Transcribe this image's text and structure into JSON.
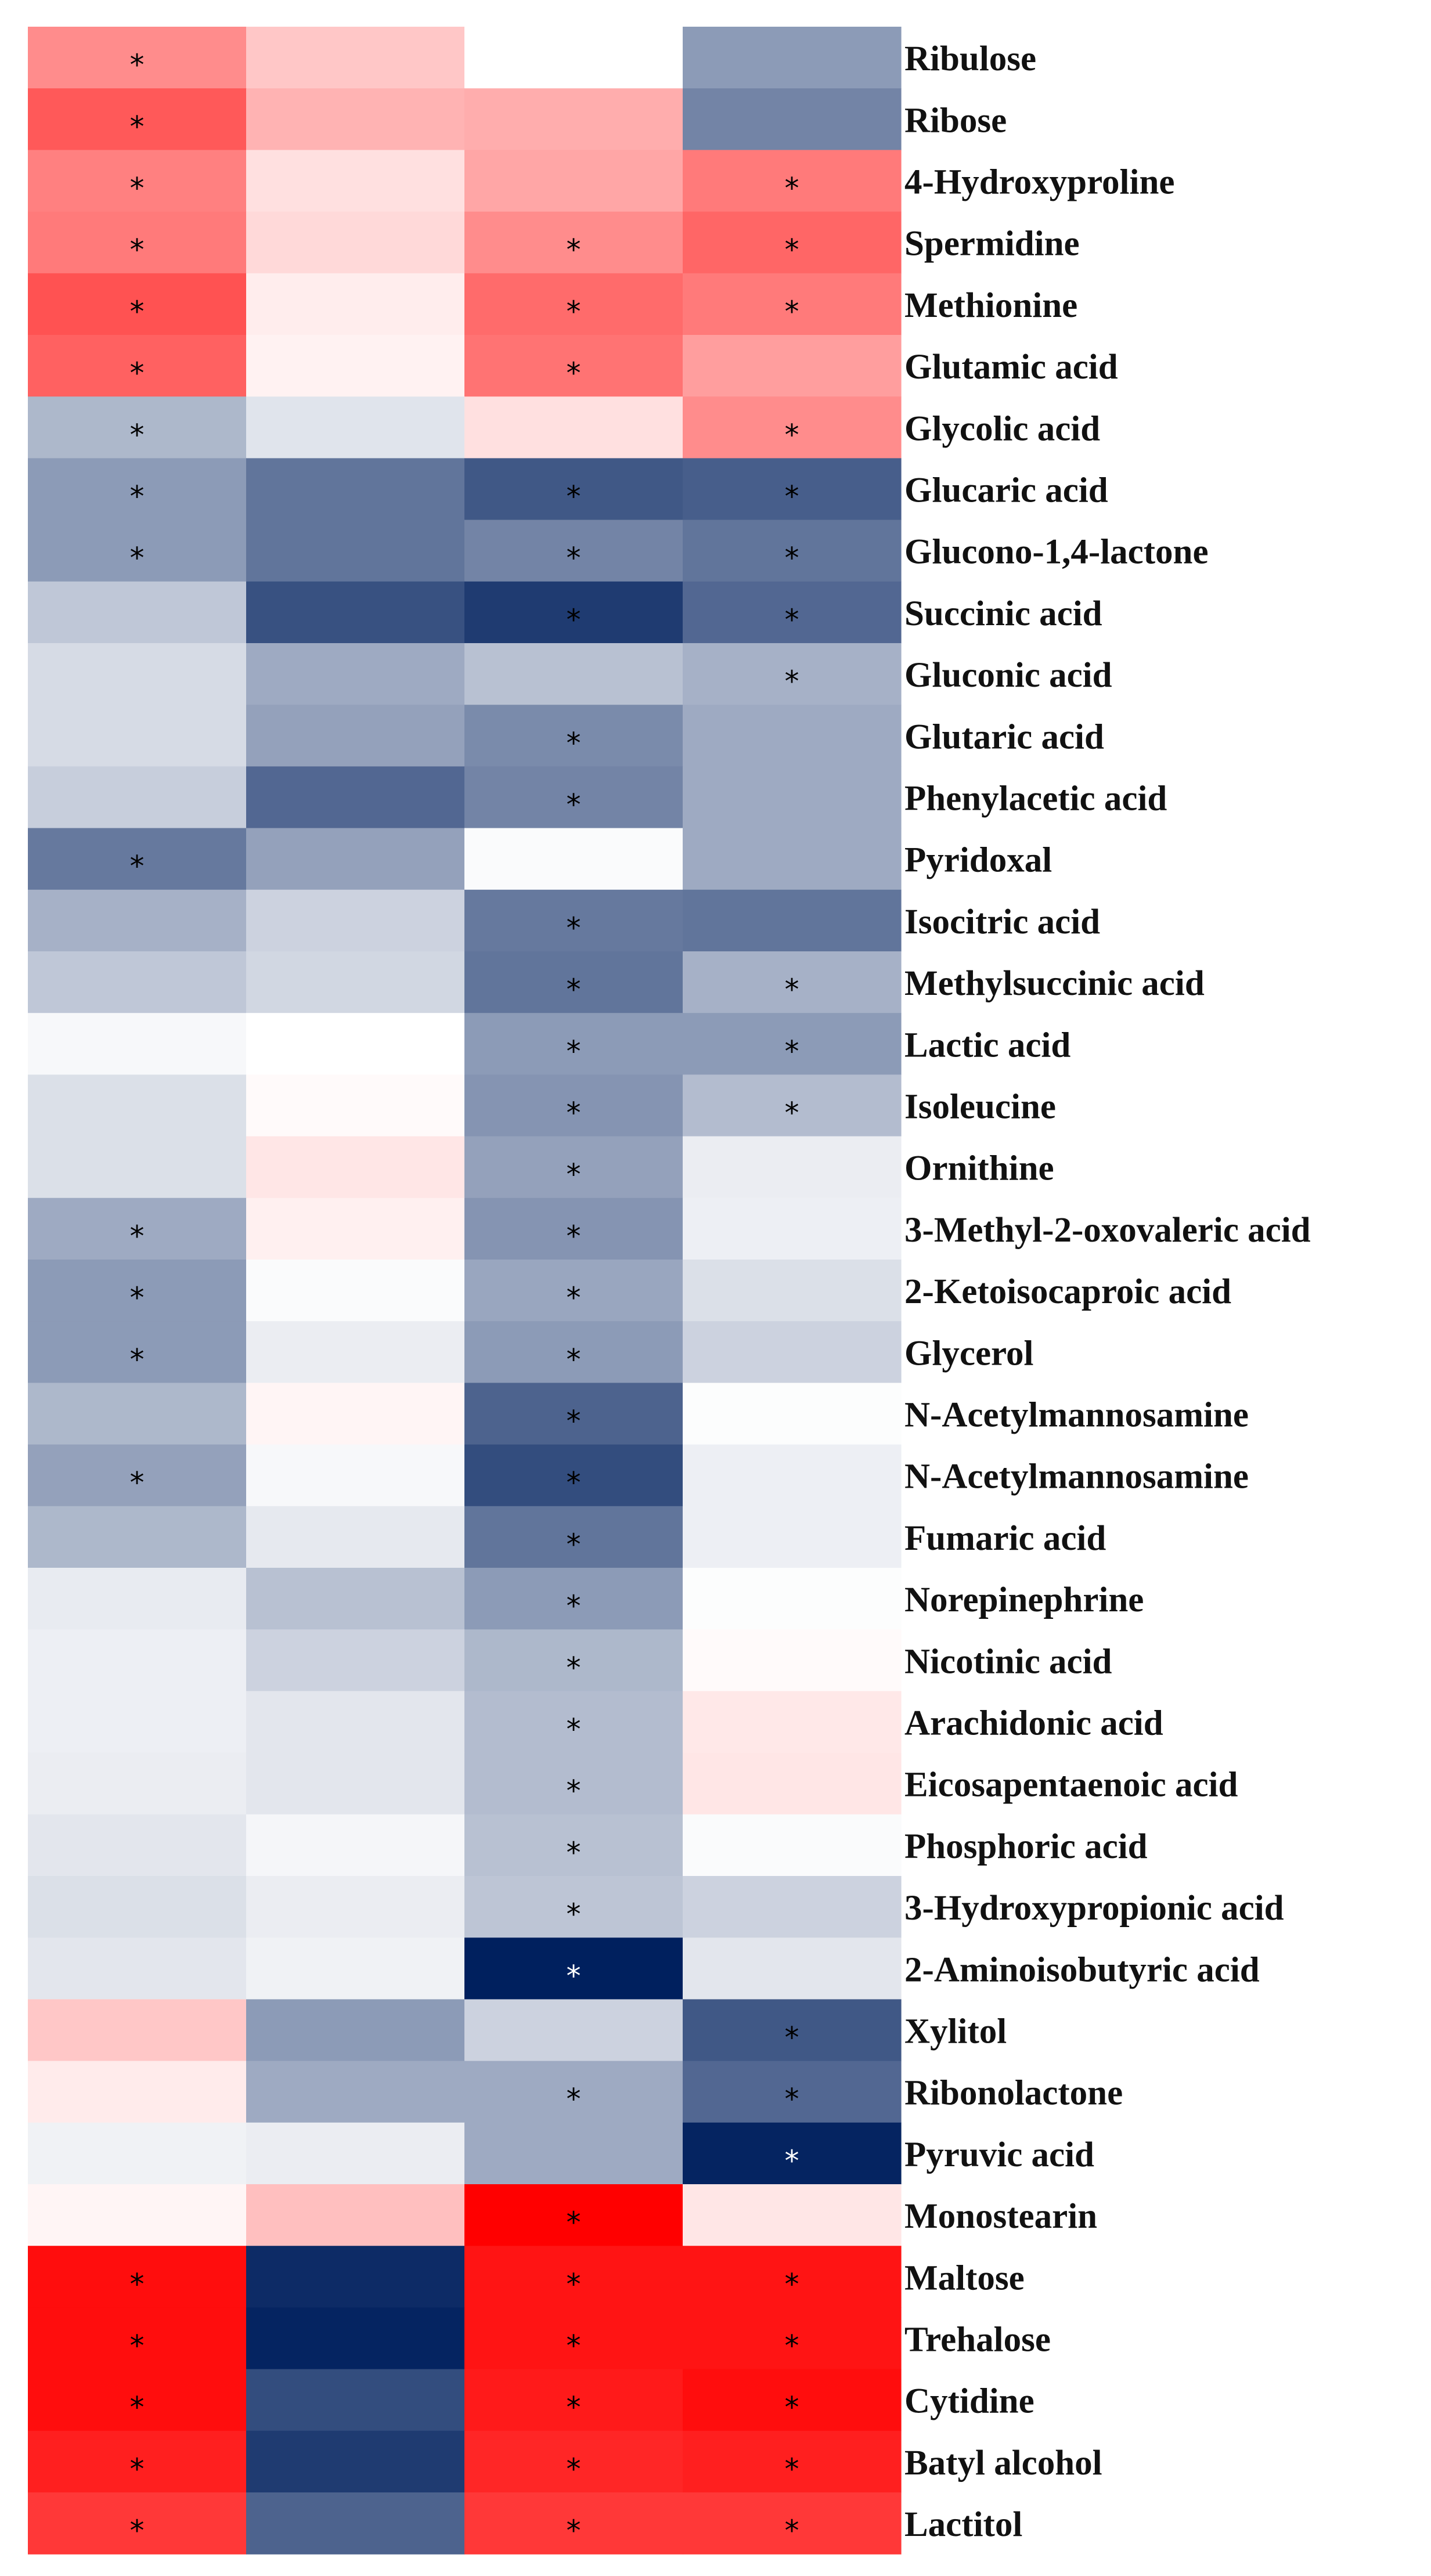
{
  "chart_data": {
    "type": "heatmap",
    "title": "",
    "xlabel": "",
    "ylabel": "",
    "columns": [
      "",
      "",
      "",
      ""
    ],
    "colorscale": {
      "low": "#00205e",
      "mid": "#ffffff",
      "high": "#ff0000",
      "range": [
        -1,
        1
      ]
    },
    "rows": [
      {
        "label": "Ribulose",
        "values": [
          0.45,
          0.22,
          0.0,
          -0.45
        ],
        "stars": [
          true,
          false,
          false,
          false
        ]
      },
      {
        "label": "Ribose",
        "values": [
          0.65,
          0.3,
          0.32,
          -0.55
        ],
        "stars": [
          true,
          false,
          false,
          false
        ]
      },
      {
        "label": "4-Hydroxyproline",
        "values": [
          0.5,
          0.12,
          0.35,
          0.52
        ],
        "stars": [
          true,
          false,
          false,
          true
        ]
      },
      {
        "label": "Spermidine",
        "values": [
          0.52,
          0.15,
          0.45,
          0.6
        ],
        "stars": [
          true,
          false,
          true,
          true
        ]
      },
      {
        "label": "Methionine",
        "values": [
          0.68,
          0.07,
          0.58,
          0.52
        ],
        "stars": [
          true,
          false,
          true,
          true
        ]
      },
      {
        "label": "Glutamic acid",
        "values": [
          0.62,
          0.05,
          0.55,
          0.38
        ],
        "stars": [
          true,
          false,
          true,
          false
        ]
      },
      {
        "label": "Glycolic acid",
        "values": [
          -0.32,
          -0.12,
          0.12,
          0.45
        ],
        "stars": [
          true,
          false,
          false,
          true
        ]
      },
      {
        "label": "Glucaric acid",
        "values": [
          -0.45,
          -0.62,
          -0.75,
          -0.72
        ],
        "stars": [
          true,
          false,
          true,
          true
        ]
      },
      {
        "label": "Glucono-1,4-lactone",
        "values": [
          -0.45,
          -0.62,
          -0.55,
          -0.62
        ],
        "stars": [
          true,
          false,
          true,
          true
        ]
      },
      {
        "label": "Succinic acid",
        "values": [
          -0.25,
          -0.78,
          -0.88,
          -0.68
        ],
        "stars": [
          false,
          false,
          true,
          true
        ]
      },
      {
        "label": "Gluconic acid",
        "values": [
          -0.16,
          -0.38,
          -0.28,
          -0.35
        ],
        "stars": [
          false,
          false,
          false,
          true
        ]
      },
      {
        "label": "Glutaric acid",
        "values": [
          -0.16,
          -0.42,
          -0.52,
          -0.38
        ],
        "stars": [
          false,
          false,
          true,
          false
        ]
      },
      {
        "label": "Phenylacetic acid",
        "values": [
          -0.22,
          -0.68,
          -0.55,
          -0.38
        ],
        "stars": [
          false,
          false,
          true,
          false
        ]
      },
      {
        "label": "Pyridoxal",
        "values": [
          -0.6,
          -0.42,
          -0.02,
          -0.38
        ],
        "stars": [
          true,
          false,
          false,
          false
        ]
      },
      {
        "label": "Isocitric acid",
        "values": [
          -0.35,
          -0.2,
          -0.6,
          -0.62
        ],
        "stars": [
          false,
          false,
          true,
          false
        ]
      },
      {
        "label": "Methylsuccinic acid",
        "values": [
          -0.25,
          -0.18,
          -0.62,
          -0.35
        ],
        "stars": [
          false,
          false,
          true,
          true
        ]
      },
      {
        "label": "Lactic acid",
        "values": [
          -0.03,
          0.0,
          -0.45,
          -0.45
        ],
        "stars": [
          false,
          false,
          true,
          true
        ]
      },
      {
        "label": "Isoleucine",
        "values": [
          -0.14,
          0.02,
          -0.48,
          -0.3
        ],
        "stars": [
          false,
          false,
          true,
          true
        ]
      },
      {
        "label": "Ornithine",
        "values": [
          -0.14,
          0.1,
          -0.42,
          -0.08
        ],
        "stars": [
          false,
          false,
          true,
          false
        ]
      },
      {
        "label": "3-Methyl-2-oxovaleric acid",
        "values": [
          -0.38,
          0.06,
          -0.48,
          -0.07
        ],
        "stars": [
          true,
          false,
          true,
          false
        ]
      },
      {
        "label": "2-Ketoisocaproic acid",
        "values": [
          -0.45,
          -0.02,
          -0.4,
          -0.14
        ],
        "stars": [
          true,
          false,
          true,
          false
        ]
      },
      {
        "label": "Glycerol",
        "values": [
          -0.45,
          -0.08,
          -0.45,
          -0.2
        ],
        "stars": [
          true,
          false,
          true,
          false
        ]
      },
      {
        "label": "N-Acetylmannosamine",
        "values": [
          -0.32,
          0.04,
          -0.7,
          -0.01
        ],
        "stars": [
          false,
          false,
          true,
          false
        ]
      },
      {
        "label": "N-Acetylmannosamine",
        "values": [
          -0.42,
          -0.03,
          -0.8,
          -0.07
        ],
        "stars": [
          true,
          false,
          true,
          false
        ]
      },
      {
        "label": "Fumaric acid",
        "values": [
          -0.32,
          -0.1,
          -0.62,
          -0.07
        ],
        "stars": [
          false,
          false,
          true,
          false
        ]
      },
      {
        "label": "Norepinephrine",
        "values": [
          -0.09,
          -0.28,
          -0.45,
          -0.01
        ],
        "stars": [
          false,
          false,
          true,
          false
        ]
      },
      {
        "label": "Nicotinic acid",
        "values": [
          -0.07,
          -0.2,
          -0.32,
          0.02
        ],
        "stars": [
          false,
          false,
          true,
          false
        ]
      },
      {
        "label": "Arachidonic acid",
        "values": [
          -0.07,
          -0.11,
          -0.3,
          0.09
        ],
        "stars": [
          false,
          false,
          true,
          false
        ]
      },
      {
        "label": "Eicosapentaenoic acid",
        "values": [
          -0.08,
          -0.11,
          -0.3,
          0.1
        ],
        "stars": [
          false,
          false,
          true,
          false
        ]
      },
      {
        "label": "Phosphoric acid",
        "values": [
          -0.11,
          -0.04,
          -0.28,
          -0.02
        ],
        "stars": [
          false,
          false,
          true,
          false
        ]
      },
      {
        "label": "3-Hydroxypropionic acid",
        "values": [
          -0.14,
          -0.08,
          -0.26,
          -0.2
        ],
        "stars": [
          false,
          false,
          true,
          false
        ]
      },
      {
        "label": "2-Aminoisobutyric acid",
        "values": [
          -0.11,
          -0.06,
          -1.0,
          -0.11
        ],
        "stars": [
          false,
          false,
          true,
          false
        ]
      },
      {
        "label": "Xylitol",
        "values": [
          0.22,
          -0.45,
          -0.2,
          -0.75
        ],
        "stars": [
          false,
          false,
          false,
          true
        ]
      },
      {
        "label": "Ribonolactone",
        "values": [
          0.08,
          -0.38,
          -0.38,
          -0.68
        ],
        "stars": [
          false,
          false,
          true,
          true
        ]
      },
      {
        "label": "Pyruvic acid",
        "values": [
          -0.06,
          -0.08,
          -0.38,
          -0.98
        ],
        "stars": [
          false,
          false,
          false,
          true
        ]
      },
      {
        "label": "Monostearin",
        "values": [
          0.04,
          0.25,
          1.0,
          0.1
        ],
        "stars": [
          false,
          false,
          true,
          false
        ]
      },
      {
        "label": "Maltose",
        "values": [
          0.95,
          -0.95,
          0.92,
          0.92
        ],
        "stars": [
          true,
          false,
          true,
          true
        ]
      },
      {
        "label": "Trehalose",
        "values": [
          0.95,
          -0.98,
          0.92,
          0.92
        ],
        "stars": [
          true,
          false,
          true,
          true
        ]
      },
      {
        "label": "Cytidine",
        "values": [
          0.95,
          -0.8,
          0.9,
          0.95
        ],
        "stars": [
          true,
          false,
          true,
          true
        ]
      },
      {
        "label": "Batyl alcohol",
        "values": [
          0.88,
          -0.88,
          0.85,
          0.88
        ],
        "stars": [
          true,
          false,
          true,
          true
        ]
      },
      {
        "label": "Lactitol",
        "values": [
          0.78,
          -0.7,
          0.78,
          0.78
        ],
        "stars": [
          true,
          false,
          true,
          true
        ]
      }
    ]
  }
}
